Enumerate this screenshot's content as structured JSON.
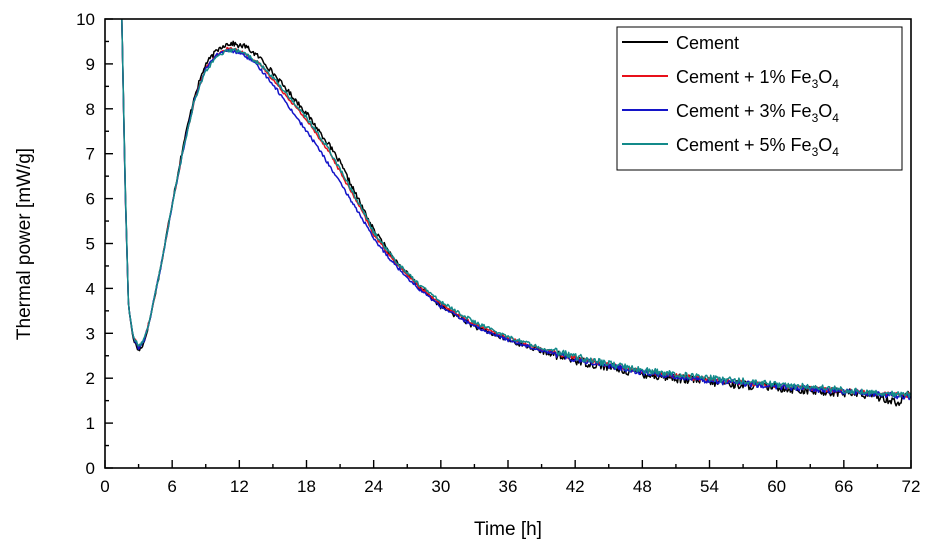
{
  "chart_data": {
    "type": "line",
    "title": "",
    "xlabel": "Time [h]",
    "ylabel": "Thermal power [mW/g]",
    "xlim": [
      0,
      72
    ],
    "ylim": [
      0,
      10
    ],
    "xticks": [
      "0",
      "6",
      "12",
      "18",
      "24",
      "30",
      "36",
      "42",
      "48",
      "54",
      "60",
      "66",
      "72"
    ],
    "yticks": [
      "0",
      "1",
      "2",
      "3",
      "4",
      "5",
      "6",
      "7",
      "8",
      "9",
      "10"
    ],
    "grid": false,
    "legend_position": "top-right",
    "series": [
      {
        "name": "Cement",
        "legend_parts": [
          "Cement"
        ],
        "color": "#000000",
        "x": [
          1.5,
          1.8,
          2.1,
          2.5,
          3.0,
          3.5,
          4.0,
          5.0,
          6.0,
          7.0,
          8.0,
          9.0,
          10.0,
          10.5,
          11.0,
          11.5,
          12.0,
          12.5,
          13.0,
          14.0,
          15.0,
          16.0,
          17.0,
          18.0,
          19.0,
          20.0,
          21.0,
          22.0,
          23.0,
          24.0,
          26.0,
          28.0,
          30.0,
          33.0,
          36.0,
          39.0,
          42.0,
          45.0,
          48.0,
          51.0,
          54.0,
          57.0,
          60.0,
          63.0,
          66.0,
          69.0,
          71.0,
          71.8
        ],
        "y": [
          10.0,
          6.3,
          3.6,
          2.9,
          2.6,
          2.8,
          3.3,
          4.5,
          5.9,
          7.2,
          8.3,
          9.0,
          9.3,
          9.4,
          9.45,
          9.45,
          9.4,
          9.4,
          9.3,
          9.1,
          8.8,
          8.5,
          8.2,
          7.9,
          7.55,
          7.2,
          6.8,
          6.3,
          5.8,
          5.3,
          4.6,
          4.05,
          3.6,
          3.15,
          2.85,
          2.6,
          2.4,
          2.25,
          2.1,
          2.0,
          1.92,
          1.85,
          1.8,
          1.72,
          1.68,
          1.6,
          1.45,
          1.75
        ]
      },
      {
        "name": "Cement + 1% Fe3O4",
        "legend_parts": [
          "Cement + 1% Fe",
          "3",
          "O",
          "4"
        ],
        "color": "#e8101a",
        "x": [
          1.5,
          1.8,
          2.1,
          2.5,
          3.0,
          3.5,
          4.0,
          5.0,
          6.0,
          7.0,
          8.0,
          9.0,
          10.0,
          11.0,
          12.0,
          13.0,
          14.0,
          15.0,
          16.0,
          17.0,
          18.0,
          19.0,
          20.0,
          21.0,
          22.0,
          23.0,
          24.0,
          26.0,
          28.0,
          30.0,
          33.0,
          36.0,
          39.0,
          42.0,
          45.0,
          48.0,
          51.0,
          54.0,
          57.0,
          60.0,
          63.0,
          66.0,
          69.0,
          72.0
        ],
        "y": [
          10.0,
          6.2,
          3.6,
          2.95,
          2.7,
          2.85,
          3.3,
          4.5,
          5.85,
          7.1,
          8.2,
          8.9,
          9.2,
          9.35,
          9.3,
          9.15,
          8.95,
          8.65,
          8.35,
          8.05,
          7.75,
          7.4,
          7.05,
          6.6,
          6.15,
          5.7,
          5.2,
          4.55,
          4.05,
          3.65,
          3.2,
          2.9,
          2.65,
          2.45,
          2.3,
          2.15,
          2.05,
          1.97,
          1.9,
          1.83,
          1.77,
          1.72,
          1.66,
          1.62
        ]
      },
      {
        "name": "Cement + 3% Fe3O4",
        "legend_parts": [
          "Cement + 3% Fe",
          "3",
          "O",
          "4"
        ],
        "color": "#1414c8",
        "x": [
          1.5,
          1.8,
          2.1,
          2.5,
          3.0,
          3.5,
          4.0,
          5.0,
          6.0,
          7.0,
          8.0,
          9.0,
          10.0,
          11.0,
          12.0,
          13.0,
          14.0,
          15.0,
          16.0,
          17.0,
          18.0,
          19.0,
          20.0,
          21.0,
          22.0,
          23.0,
          24.0,
          26.0,
          28.0,
          30.0,
          33.0,
          36.0,
          39.0,
          42.0,
          45.0,
          48.0,
          51.0,
          54.0,
          57.0,
          60.0,
          63.0,
          66.0,
          69.0,
          72.0
        ],
        "y": [
          10.0,
          6.2,
          3.6,
          2.95,
          2.65,
          2.85,
          3.3,
          4.5,
          5.85,
          7.1,
          8.2,
          8.9,
          9.2,
          9.3,
          9.25,
          9.1,
          8.85,
          8.55,
          8.2,
          7.85,
          7.5,
          7.15,
          6.75,
          6.35,
          5.95,
          5.55,
          5.1,
          4.5,
          4.0,
          3.6,
          3.15,
          2.85,
          2.62,
          2.42,
          2.28,
          2.13,
          2.03,
          1.95,
          1.88,
          1.82,
          1.76,
          1.7,
          1.64,
          1.58
        ]
      },
      {
        "name": "Cement + 5% Fe3O4",
        "legend_parts": [
          "Cement + 5% Fe",
          "3",
          "O",
          "4"
        ],
        "color": "#138a8a",
        "x": [
          1.5,
          1.8,
          2.1,
          2.5,
          3.0,
          3.5,
          4.0,
          5.0,
          6.0,
          7.0,
          8.0,
          9.0,
          10.0,
          11.0,
          12.0,
          13.0,
          14.0,
          15.0,
          16.0,
          17.0,
          18.0,
          19.0,
          20.0,
          21.0,
          22.0,
          23.0,
          24.0,
          26.0,
          28.0,
          30.0,
          33.0,
          36.0,
          39.0,
          42.0,
          45.0,
          48.0,
          51.0,
          54.0,
          57.0,
          60.0,
          63.0,
          66.0,
          69.0,
          72.0
        ],
        "y": [
          10.0,
          6.3,
          3.6,
          2.95,
          2.7,
          2.85,
          3.3,
          4.5,
          5.85,
          7.1,
          8.2,
          8.85,
          9.15,
          9.3,
          9.3,
          9.15,
          8.95,
          8.7,
          8.4,
          8.1,
          7.8,
          7.45,
          7.1,
          6.65,
          6.2,
          5.75,
          5.25,
          4.6,
          4.1,
          3.7,
          3.25,
          2.92,
          2.68,
          2.48,
          2.32,
          2.18,
          2.08,
          2.0,
          1.93,
          1.86,
          1.8,
          1.74,
          1.68,
          1.63
        ]
      }
    ]
  }
}
